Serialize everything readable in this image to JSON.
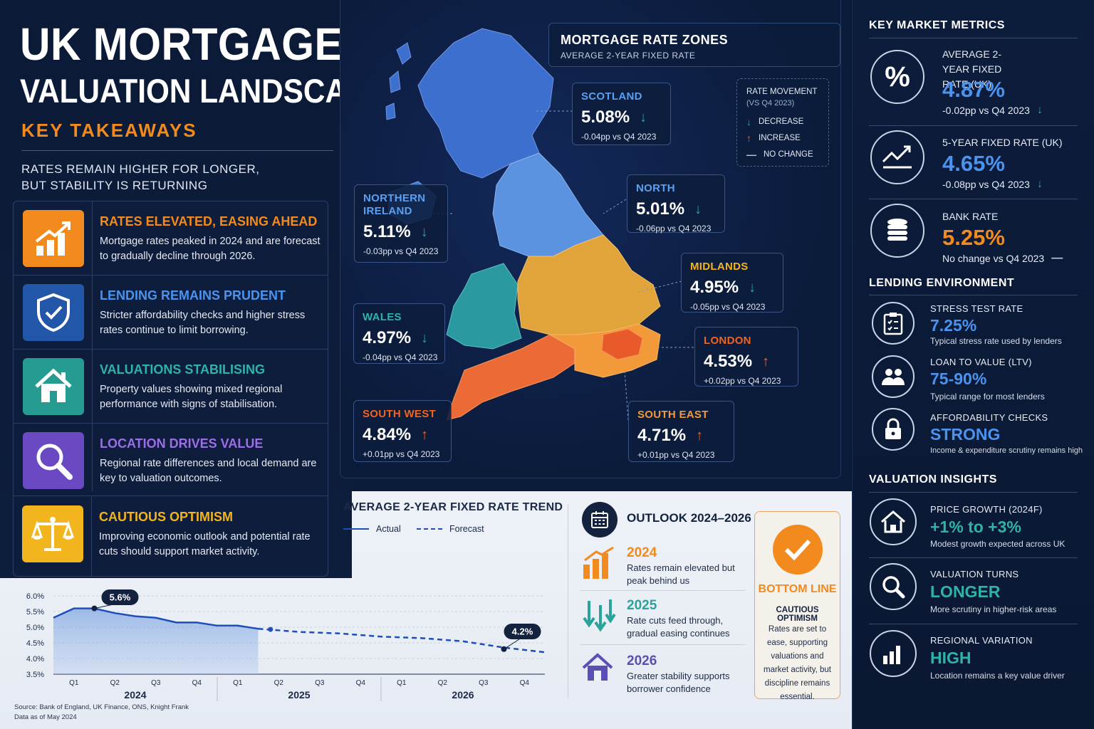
{
  "header": {
    "title_line1": "UK MORTGAGE",
    "title_line2": "VALUATION LANDSCAPE",
    "section": "KEY TAKEAWAYS",
    "tagline_line1": "RATES REMAIN HIGHER FOR LONGER,",
    "tagline_line2": "BUT STABILITY IS RETURNING"
  },
  "takeaways": [
    {
      "title": "RATES ELEVATED, EASING AHEAD",
      "text": "Mortgage rates peaked in 2024 and are forecast to gradually decline through 2026.",
      "color": "#f28a1d",
      "icon": "chart-up-icon"
    },
    {
      "title": "LENDING REMAINS PRUDENT",
      "text": "Stricter affordability checks and higher stress rates continue to limit borrowing.",
      "color": "#3f7fd8",
      "icon": "shield-check-icon"
    },
    {
      "title": "VALUATIONS STABILISING",
      "text": "Property values showing mixed regional performance with signs of stabilisation.",
      "color": "#2aa39a",
      "icon": "house-icon"
    },
    {
      "title": "LOCATION DRIVES VALUE",
      "text": "Regional rate differences and local demand are key to valuation outcomes.",
      "color": "#8b5cd6",
      "icon": "magnifier-icon"
    },
    {
      "title": "CAUTIOUS OPTIMISM",
      "text": "Improving economic outlook and potential rate cuts should support market activity.",
      "color": "#f2b51d",
      "icon": "scales-icon"
    }
  ],
  "map": {
    "title": "MORTGAGE RATE ZONES",
    "subtitle": "AVERAGE 2-YEAR FIXED RATE",
    "legend": {
      "title": "RATE MOVEMENT",
      "subtitle": "(VS Q4 2023)",
      "decrease": "DECREASE",
      "increase": "INCREASE",
      "no_change": "NO CHANGE"
    },
    "regions": [
      {
        "name": "SCOTLAND",
        "value": "5.08%",
        "delta": "-0.04pp vs Q4 2023",
        "dir": "down"
      },
      {
        "name": "NORTHERN IRELAND",
        "value": "5.11%",
        "delta": "-0.03pp vs Q4 2023",
        "dir": "down"
      },
      {
        "name": "NORTH",
        "value": "5.01%",
        "delta": "-0.06pp vs Q4 2023",
        "dir": "down"
      },
      {
        "name": "MIDLANDS",
        "value": "4.95%",
        "delta": "-0.05pp vs Q4 2023",
        "dir": "down"
      },
      {
        "name": "WALES",
        "value": "4.97%",
        "delta": "-0.04pp vs Q4 2023",
        "dir": "down"
      },
      {
        "name": "LONDON",
        "value": "4.53%",
        "delta": "+0.02pp vs Q4 2023",
        "dir": "up"
      },
      {
        "name": "SOUTH WEST",
        "value": "4.84%",
        "delta": "+0.01pp vs Q4 2023",
        "dir": "up"
      },
      {
        "name": "SOUTH EAST",
        "value": "4.71%",
        "delta": "+0.01pp vs Q4 2023",
        "dir": "up"
      }
    ]
  },
  "metrics": {
    "heading": "KEY MARKET METRICS",
    "items": [
      {
        "label": "AVERAGE 2-YEAR FIXED RATE (UK)",
        "value": "4.87%",
        "delta": "-0.02pp vs Q4 2023",
        "dir": "down"
      },
      {
        "label": "5-YEAR FIXED RATE (UK)",
        "value": "4.65%",
        "delta": "-0.08pp vs Q4 2023",
        "dir": "down"
      },
      {
        "label": "BANK RATE",
        "value": "5.25%",
        "delta": "No change vs Q4 2023",
        "dir": "none"
      }
    ]
  },
  "lending": {
    "heading": "LENDING ENVIRONMENT",
    "items": [
      {
        "label": "STRESS TEST RATE",
        "value": "7.25%",
        "note": "Typical stress rate used by lenders"
      },
      {
        "label": "LOAN TO VALUE (LTV)",
        "value": "75-90%",
        "note": "Typical range for most lenders"
      },
      {
        "label": "AFFORDABILITY CHECKS",
        "value": "STRONG",
        "note": "Income & expenditure scrutiny remains high"
      }
    ]
  },
  "valuation": {
    "heading": "VALUATION INSIGHTS",
    "items": [
      {
        "label": "PRICE GROWTH (2024F)",
        "value": "+1% to +3%",
        "note": "Modest growth expected across UK"
      },
      {
        "label": "VALUATION TURNS",
        "value": "LONGER",
        "note": "More scrutiny in higher-risk areas"
      },
      {
        "label": "REGIONAL VARIATION",
        "value": "HIGH",
        "note": "Location remains a key value driver"
      }
    ]
  },
  "trend": {
    "title": "AVERAGE 2-YEAR FIXED RATE TREND",
    "legend_actual": "Actual",
    "legend_forecast": "Forecast"
  },
  "chart_data": {
    "type": "line",
    "title": "AVERAGE 2-YEAR FIXED RATE TREND",
    "y_ticks": [
      "6.0%",
      "5.5%",
      "5.0%",
      "4.5%",
      "4.0%",
      "3.5%"
    ],
    "ylim": [
      3.5,
      6.0
    ],
    "x_ticks": [
      "Q1",
      "Q2",
      "Q3",
      "Q4",
      "Q1",
      "Q2",
      "Q3",
      "Q4",
      "Q1",
      "Q2",
      "Q3",
      "Q4"
    ],
    "years": [
      "2024",
      "2025",
      "2026"
    ],
    "series": [
      {
        "name": "Actual",
        "style": "solid",
        "x": [
          0,
          0.5,
          1,
          1.5,
          2,
          2.5,
          3,
          3.5,
          4,
          4.5,
          5
        ],
        "y": [
          5.3,
          5.6,
          5.6,
          5.45,
          5.35,
          5.3,
          5.15,
          5.15,
          5.05,
          5.05,
          4.95
        ]
      },
      {
        "name": "Forecast",
        "style": "dashed",
        "x": [
          5,
          6,
          7,
          8,
          9,
          10,
          11,
          12
        ],
        "y": [
          4.95,
          4.85,
          4.8,
          4.7,
          4.65,
          4.55,
          4.35,
          4.2
        ]
      }
    ],
    "annotations": [
      {
        "label": "5.6%",
        "x": 1,
        "y": 5.6
      },
      {
        "label": "4.2%",
        "x": 11,
        "y": 4.3
      }
    ],
    "grid": true
  },
  "outlook": {
    "title": "OUTLOOK 2024–2026",
    "items": [
      {
        "year": "2024",
        "text": "Rates remain elevated but peak behind us",
        "color": "#f28a1d"
      },
      {
        "year": "2025",
        "text": "Rate cuts feed through, gradual easing continues",
        "color": "#2aa39a"
      },
      {
        "year": "2026",
        "text": "Greater stability supports borrower confidence",
        "color": "#5a4fb5"
      }
    ]
  },
  "bottom_line": {
    "title": "BOTTOM LINE",
    "subtitle": "CAUTIOUS OPTIMISM",
    "text": "Rates are set to ease, supporting valuations and market activity, but discipline remains essential."
  },
  "source": {
    "line1": "Source: Bank of England, UK Finance, ONS, Knight Frank",
    "line2": "Data as of May 2024"
  },
  "colors": {
    "orange": "#f28a1d",
    "blue": "#3f8fe8",
    "teal": "#2aa39a",
    "down_arrow": "#2aa39a",
    "up_arrow": "#f2641d"
  }
}
